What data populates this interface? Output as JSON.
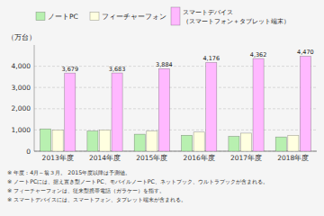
{
  "chart_data": {
    "type": "bar",
    "categories": [
      "2013年度",
      "2014年度",
      "2015年度",
      "2016年度",
      "2017年度",
      "2018年度"
    ],
    "series": [
      {
        "name": "ノートPC",
        "color": "#b8f0b0",
        "values": [
          1050,
          950,
          800,
          750,
          700,
          670
        ]
      },
      {
        "name": "フィーチャーフォン",
        "color": "#ffffe0",
        "values": [
          1000,
          1000,
          950,
          900,
          850,
          750
        ]
      },
      {
        "name": "スマートデバイス\n（スマートフォン＋タブレット端末）",
        "color": "#ffb8ff",
        "values": [
          3679,
          3683,
          3884,
          4176,
          4362,
          4470
        ],
        "value_labels": [
          "3,679",
          "3,683",
          "3,884",
          "4,176",
          "4,362",
          "4,470"
        ]
      }
    ],
    "y_label": "（万台）",
    "ylim": [
      0,
      5000
    ],
    "yticks": [
      0,
      {
        "value": 1000,
        "label": "1,000"
      },
      {
        "value": 2000,
        "label": "2,000"
      },
      {
        "value": 3000,
        "label": "3,000"
      },
      {
        "value": 4000,
        "label": "4,000"
      }
    ],
    "grid": true,
    "legend": "top",
    "data_labels": true,
    "notes": [
      "※ 年度：4月～翁３月。 2015年度以降は予測値。",
      "※ ノートPCには、据え置き型ノートPC、モバイルノートPC、ネットブック、ウルトラブックが含まれる。",
      "※ フィーチャーフォンは、従来型携帯電話（ガラケー）を指す。",
      "※ スマートデバイスには、スマートフォン、タブレット端末が含まれる。"
    ]
  }
}
